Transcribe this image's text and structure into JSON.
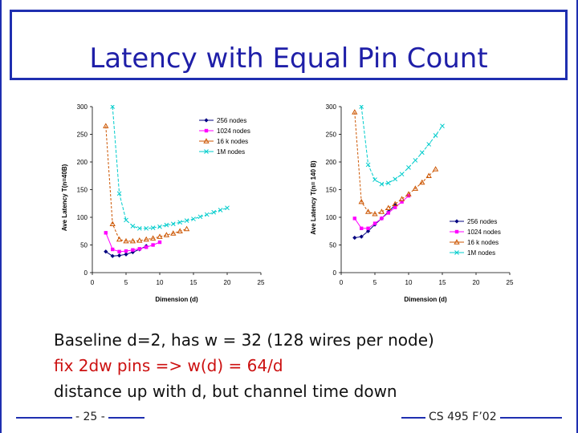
{
  "slide": {
    "title": "Latency with Equal Pin Count",
    "lines": [
      "Baseline d=2, has w = 32   (128 wires per node)",
      "fix 2dw pins => w(d) = 64/d",
      "distance up with d, but channel time down"
    ],
    "page_number": "- 25 -",
    "course": "CS 495 F’02",
    "colors": {
      "frame": "#1f2fb0",
      "title": "#1f1fa8",
      "highlight_line": "#cc1010"
    }
  },
  "chart_data": [
    {
      "type": "line",
      "xlabel": "Dimension (d)",
      "ylabel": "Ave Latency T(n=40B)",
      "xlim": [
        0,
        25
      ],
      "ylim": [
        0,
        300
      ],
      "xticks": [
        "0",
        "5",
        "10",
        "15",
        "20",
        "25"
      ],
      "yticks": [
        "0",
        "50",
        "100",
        "150",
        "200",
        "250",
        "300"
      ],
      "legend_position": "top-right",
      "series": [
        {
          "name": "256 nodes",
          "color": "#000080",
          "marker": "diamond",
          "x": [
            2,
            3,
            4,
            5,
            6,
            7,
            8
          ],
          "y": [
            38,
            30,
            31,
            33,
            37,
            42,
            48
          ]
        },
        {
          "name": "1024 nodes",
          "color": "#ff00ff",
          "marker": "square",
          "x": [
            2,
            3,
            4,
            5,
            6,
            7,
            8,
            9,
            10
          ],
          "y": [
            72,
            42,
            38,
            39,
            41,
            43,
            46,
            50,
            55
          ]
        },
        {
          "name": "16 k nodes",
          "color": "#cc5500",
          "marker": "triangle",
          "x": [
            2,
            3,
            4,
            5,
            6,
            7,
            8,
            9,
            10,
            11,
            12,
            13,
            14
          ],
          "y": [
            265,
            88,
            60,
            57,
            57,
            58,
            60,
            62,
            65,
            68,
            71,
            75,
            79
          ]
        },
        {
          "name": "1M nodes",
          "color": "#00cccc",
          "marker": "x",
          "x": [
            3,
            4,
            5,
            6,
            7,
            8,
            9,
            10,
            11,
            12,
            13,
            14,
            15,
            16,
            17,
            18,
            19,
            20
          ],
          "y": [
            300,
            143,
            95,
            84,
            80,
            80,
            81,
            83,
            86,
            88,
            91,
            94,
            97,
            101,
            105,
            109,
            113,
            117
          ]
        }
      ]
    },
    {
      "type": "line",
      "xlabel": "Dimension (d)",
      "ylabel": "Ave Latency T(n= 140 B)",
      "xlim": [
        0,
        25
      ],
      "ylim": [
        0,
        300
      ],
      "xticks": [
        "0",
        "5",
        "10",
        "15",
        "20",
        "25"
      ],
      "yticks": [
        "0",
        "50",
        "100",
        "150",
        "200",
        "250",
        "300"
      ],
      "legend_position": "bottom-right",
      "series": [
        {
          "name": "256 nodes",
          "color": "#000080",
          "marker": "diamond",
          "x": [
            2,
            3,
            4,
            5,
            6,
            7,
            8
          ],
          "y": [
            63,
            65,
            75,
            87,
            98,
            110,
            122
          ]
        },
        {
          "name": "1024 nodes",
          "color": "#ff00ff",
          "marker": "square",
          "x": [
            2,
            3,
            4,
            5,
            6,
            7,
            8,
            9,
            10
          ],
          "y": [
            98,
            80,
            80,
            89,
            98,
            108,
            118,
            128,
            139
          ]
        },
        {
          "name": "16 k nodes",
          "color": "#cc5500",
          "marker": "triangle",
          "x": [
            2,
            3,
            4,
            5,
            6,
            7,
            8,
            9,
            10,
            11,
            12,
            13,
            14
          ],
          "y": [
            290,
            128,
            110,
            106,
            110,
            117,
            124,
            133,
            142,
            152,
            163,
            175,
            187
          ]
        },
        {
          "name": "1M nodes",
          "color": "#00cccc",
          "marker": "x",
          "x": [
            3,
            4,
            5,
            6,
            7,
            8,
            9,
            10,
            11,
            12,
            13,
            14,
            15
          ],
          "y": [
            300,
            195,
            168,
            160,
            162,
            169,
            178,
            190,
            203,
            217,
            232,
            248,
            265
          ]
        }
      ]
    }
  ]
}
